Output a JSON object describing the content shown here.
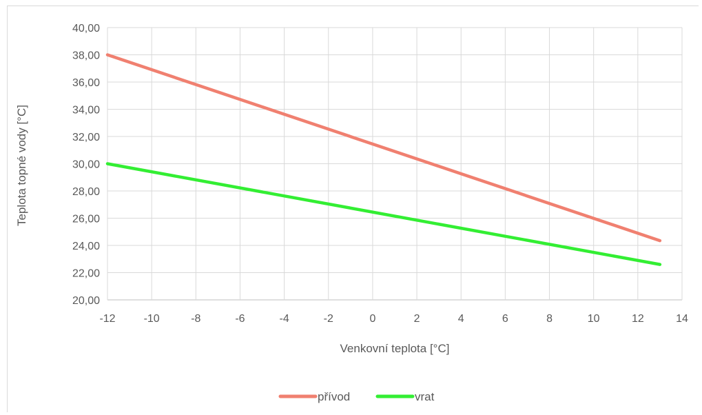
{
  "chart_data": {
    "type": "line",
    "xlabel": "Venkovní teplota [°C]",
    "ylabel": "Teplota topné vody [°C]",
    "xlim": [
      -12,
      14
    ],
    "ylim": [
      20,
      40
    ],
    "x_ticks": [
      "-12",
      "-10",
      "-8",
      "-6",
      "-4",
      "-2",
      "0",
      "2",
      "4",
      "6",
      "8",
      "10",
      "12",
      "14"
    ],
    "y_ticks": [
      "20,00",
      "22,00",
      "24,00",
      "26,00",
      "28,00",
      "30,00",
      "32,00",
      "34,00",
      "36,00",
      "38,00",
      "40,00"
    ],
    "grid": true,
    "legend_position": "bottom",
    "series": [
      {
        "name": "přívod",
        "color": "#f08070",
        "x": [
          -12,
          13
        ],
        "y": [
          38.0,
          24.35
        ]
      },
      {
        "name": "vrat",
        "color": "#33ee33",
        "x": [
          -12,
          13
        ],
        "y": [
          30.0,
          22.6
        ]
      }
    ]
  }
}
